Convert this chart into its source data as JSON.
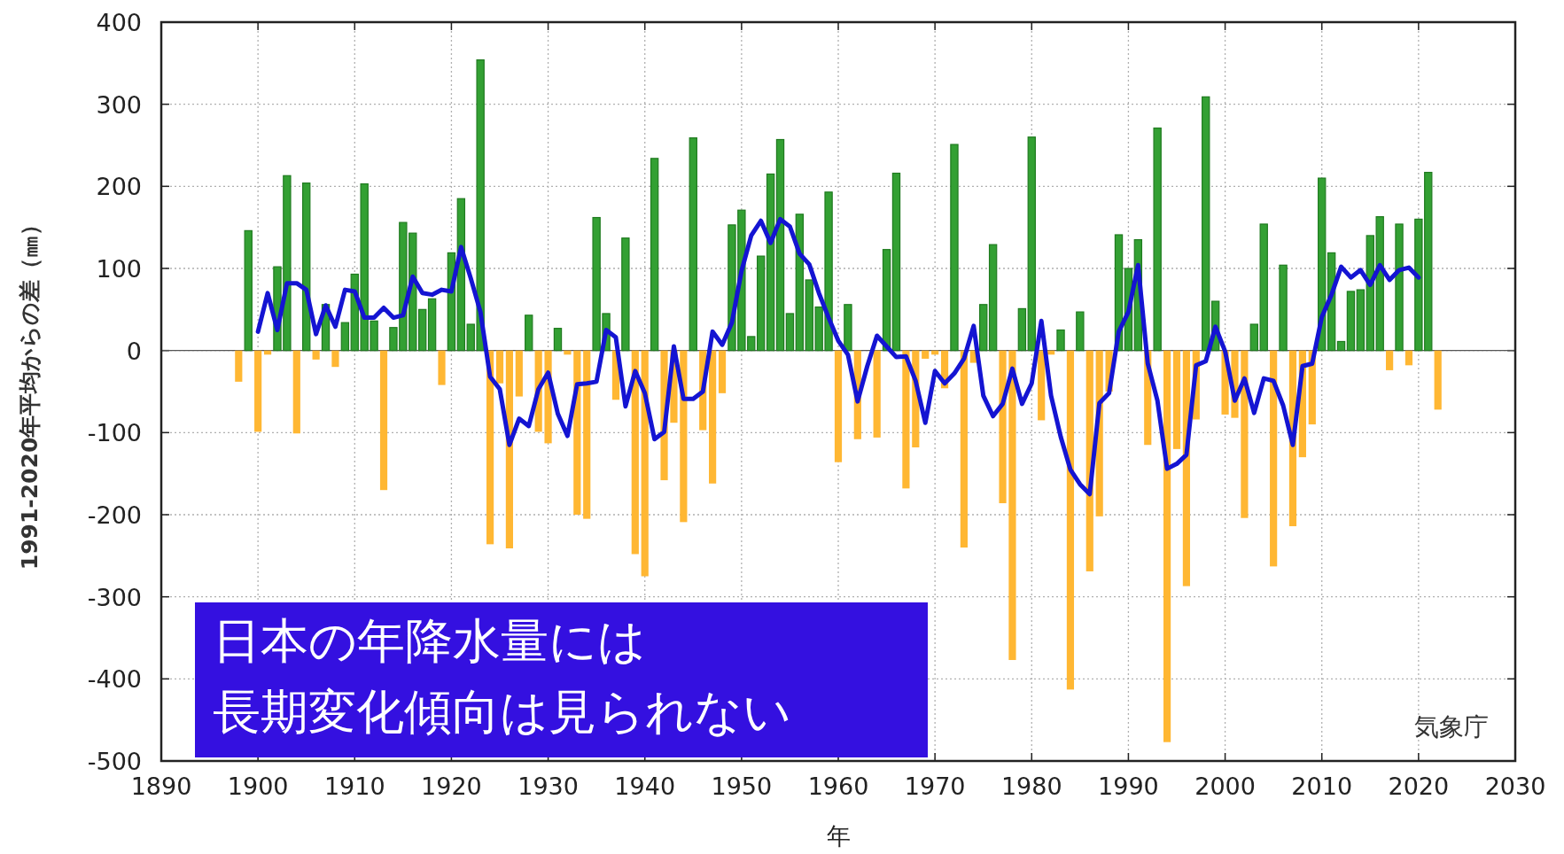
{
  "chart_data": {
    "type": "bar",
    "xlabel": "年",
    "ylabel": "1991-2020年平均からの差（㎜）",
    "x": [
      1898,
      1899,
      1900,
      1901,
      1902,
      1903,
      1904,
      1905,
      1906,
      1907,
      1908,
      1909,
      1910,
      1911,
      1912,
      1913,
      1914,
      1915,
      1916,
      1917,
      1918,
      1919,
      1920,
      1921,
      1922,
      1923,
      1924,
      1925,
      1926,
      1927,
      1928,
      1929,
      1930,
      1931,
      1932,
      1933,
      1934,
      1935,
      1936,
      1937,
      1938,
      1939,
      1940,
      1941,
      1942,
      1943,
      1944,
      1945,
      1946,
      1947,
      1948,
      1949,
      1950,
      1951,
      1952,
      1953,
      1954,
      1955,
      1956,
      1957,
      1958,
      1959,
      1960,
      1961,
      1962,
      1963,
      1964,
      1965,
      1966,
      1967,
      1968,
      1969,
      1970,
      1971,
      1972,
      1973,
      1974,
      1975,
      1976,
      1977,
      1978,
      1979,
      1980,
      1981,
      1982,
      1983,
      1984,
      1985,
      1986,
      1987,
      1988,
      1989,
      1990,
      1991,
      1992,
      1993,
      1994,
      1995,
      1996,
      1997,
      1998,
      1999,
      2000,
      2001,
      2002,
      2003,
      2004,
      2005,
      2006,
      2007,
      2008,
      2009,
      2010,
      2011,
      2012,
      2013,
      2014,
      2015,
      2016,
      2017,
      2018,
      2019,
      2020,
      2021,
      2022
    ],
    "series": [
      {
        "color": "#33a033",
        "values": [
          null,
          146,
          null,
          null,
          102,
          213,
          null,
          204,
          null,
          56,
          null,
          34,
          93,
          203,
          36,
          null,
          28,
          156,
          143,
          50,
          63,
          null,
          119,
          185,
          32,
          354,
          null,
          null,
          null,
          null,
          43,
          null,
          null,
          27,
          null,
          null,
          null,
          162,
          45,
          null,
          137,
          null,
          null,
          234,
          null,
          null,
          null,
          259,
          null,
          null,
          null,
          153,
          171,
          17,
          115,
          215,
          257,
          45,
          166,
          86,
          53,
          193,
          null,
          56,
          null,
          null,
          null,
          123,
          216,
          null,
          null,
          null,
          null,
          null,
          251,
          null,
          null,
          56,
          129,
          null,
          null,
          51,
          260,
          null,
          null,
          25,
          null,
          47,
          null,
          null,
          null,
          141,
          100,
          135,
          null,
          271,
          null,
          null,
          null,
          null,
          309,
          60,
          null,
          null,
          null,
          32,
          154,
          null,
          104,
          null,
          null,
          null,
          210,
          119,
          11,
          72,
          74,
          140,
          163,
          null,
          154,
          null,
          160,
          217,
          null
        ]
      },
      {
        "color": "#ffb733",
        "values": [
          -38,
          null,
          -99,
          -5,
          null,
          null,
          -101,
          null,
          -11,
          null,
          -20,
          null,
          null,
          null,
          null,
          -170,
          null,
          null,
          null,
          null,
          null,
          -42,
          null,
          null,
          null,
          null,
          -236,
          -40,
          -241,
          -56,
          null,
          -99,
          -113,
          null,
          -5,
          -200,
          -205,
          null,
          null,
          -60,
          null,
          -248,
          -275,
          null,
          -158,
          -88,
          -209,
          null,
          -97,
          -162,
          -52,
          null,
          null,
          null,
          null,
          null,
          null,
          null,
          null,
          null,
          null,
          null,
          -136,
          null,
          -108,
          null,
          -106,
          null,
          null,
          -168,
          -118,
          -10,
          -5,
          -46,
          null,
          -240,
          -15,
          null,
          null,
          -186,
          -377,
          null,
          null,
          -85,
          -5,
          null,
          -413,
          null,
          -269,
          -202,
          -50,
          null,
          null,
          null,
          -115,
          null,
          -477,
          -120,
          -287,
          -84,
          null,
          null,
          -78,
          -82,
          -204,
          null,
          null,
          -263,
          null,
          -214,
          -130,
          -90,
          null,
          null,
          null,
          null,
          null,
          null,
          null,
          -24,
          null,
          -18,
          null,
          null,
          -72
        ]
      },
      {
        "type": "line",
        "color": "#1414d2",
        "x": [
          1900,
          1901,
          1902,
          1903,
          1904,
          1905,
          1906,
          1907,
          1908,
          1909,
          1910,
          1911,
          1912,
          1913,
          1914,
          1915,
          1916,
          1917,
          1918,
          1919,
          1920,
          1921,
          1922,
          1923,
          1924,
          1925,
          1926,
          1927,
          1928,
          1929,
          1930,
          1931,
          1932,
          1933,
          1934,
          1935,
          1936,
          1937,
          1938,
          1939,
          1940,
          1941,
          1942,
          1943,
          1944,
          1945,
          1946,
          1947,
          1948,
          1949,
          1950,
          1951,
          1952,
          1953,
          1954,
          1955,
          1956,
          1957,
          1958,
          1959,
          1960,
          1961,
          1962,
          1963,
          1964,
          1965,
          1966,
          1967,
          1968,
          1969,
          1970,
          1971,
          1972,
          1973,
          1974,
          1975,
          1976,
          1977,
          1978,
          1979,
          1980,
          1981,
          1982,
          1983,
          1984,
          1985,
          1986,
          1987,
          1988,
          1989,
          1990,
          1991,
          1992,
          1993,
          1994,
          1995,
          1996,
          1997,
          1998,
          1999,
          2000,
          2001,
          2002,
          2003,
          2004,
          2005,
          2006,
          2007,
          2008,
          2009,
          2010,
          2011,
          2012,
          2013,
          2014,
          2015,
          2016,
          2017,
          2018,
          2019,
          2020
        ],
        "values": [
          23,
          70,
          25,
          82,
          82,
          74,
          20,
          55,
          29,
          74,
          72,
          40,
          40,
          52,
          40,
          43,
          90,
          70,
          68,
          74,
          72,
          126,
          88,
          47,
          -32,
          -47,
          -115,
          -83,
          -92,
          -47,
          -27,
          -77,
          -104,
          -41,
          -40,
          -38,
          25,
          16,
          -68,
          -25,
          -52,
          -108,
          -99,
          5,
          -59,
          -59,
          -50,
          23,
          7,
          34,
          97,
          140,
          158,
          131,
          160,
          151,
          118,
          105,
          70,
          40,
          12,
          -5,
          -62,
          -19,
          18,
          5,
          -8,
          -7,
          -37,
          -88,
          -25,
          -40,
          -28,
          -10,
          30,
          -55,
          -80,
          -65,
          -22,
          -65,
          -40,
          36,
          -55,
          -105,
          -145,
          -163,
          -175,
          -64,
          -52,
          23,
          47,
          104,
          -16,
          -61,
          -144,
          -138,
          -127,
          -18,
          -13,
          29,
          -1,
          -61,
          -34,
          -76,
          -34,
          -37,
          -67,
          -115,
          -19,
          -16,
          41,
          68,
          102,
          89,
          98,
          80,
          104,
          86,
          98,
          101,
          89
        ]
      }
    ],
    "xlim": [
      1890,
      2030
    ],
    "xticks": [
      1890,
      1900,
      1910,
      1920,
      1930,
      1940,
      1950,
      1960,
      1970,
      1980,
      1990,
      2000,
      2010,
      2020,
      2030
    ],
    "ylim": [
      -500,
      400
    ],
    "yticks": [
      -500,
      -400,
      -300,
      -200,
      -100,
      0,
      100,
      200,
      300,
      400
    ],
    "grid": true,
    "annotations": [
      "日本の年降水量には",
      "長期変化傾向は見られない",
      "気象庁"
    ]
  }
}
